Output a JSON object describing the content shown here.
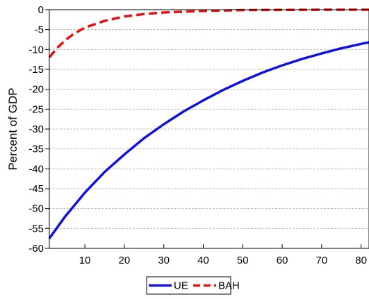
{
  "chart_data": {
    "type": "line",
    "title": "",
    "xlabel": "",
    "ylabel": "Percent of GDP",
    "xlim": [
      1,
      82
    ],
    "ylim": [
      -60,
      0
    ],
    "xticks": [
      10,
      20,
      30,
      40,
      50,
      60,
      70,
      80
    ],
    "yticks": [
      0,
      -5,
      -10,
      -15,
      -20,
      -25,
      -30,
      -35,
      -40,
      -45,
      -50,
      -55,
      -60
    ],
    "grid": "horizontal dashed",
    "legend_position": "bottom",
    "series": [
      {
        "name": "UE",
        "color": "#1010e0",
        "style": "solid",
        "x": [
          1,
          5,
          10,
          15,
          20,
          25,
          30,
          35,
          40,
          45,
          50,
          55,
          60,
          65,
          70,
          75,
          80,
          82
        ],
        "values": [
          -57.5,
          -52.0,
          -46.0,
          -40.8,
          -36.4,
          -32.3,
          -28.8,
          -25.6,
          -22.8,
          -20.2,
          -17.9,
          -15.8,
          -14.0,
          -12.4,
          -11.0,
          -9.7,
          -8.6,
          -8.2
        ]
      },
      {
        "name": "BAH",
        "color": "#e81010",
        "style": "dashed",
        "x": [
          1,
          3,
          5,
          7,
          10,
          15,
          20,
          25,
          30,
          35,
          40,
          50,
          60,
          70,
          82
        ],
        "values": [
          -12.0,
          -9.6,
          -7.7,
          -6.2,
          -4.5,
          -2.8,
          -1.7,
          -1.1,
          -0.7,
          -0.5,
          -0.3,
          -0.1,
          -0.05,
          0,
          0
        ]
      }
    ]
  }
}
